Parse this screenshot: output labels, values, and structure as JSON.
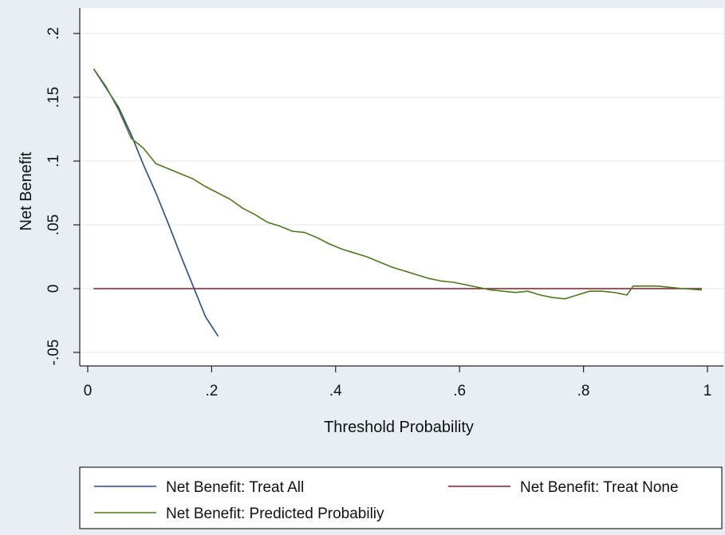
{
  "chart_data": {
    "type": "line",
    "xlabel": "Threshold Probability",
    "ylabel": "Net Benefit",
    "xlim": [
      0,
      1
    ],
    "ylim": [
      -0.06,
      0.2
    ],
    "x_ticks": [
      {
        "value": 0,
        "label": "0"
      },
      {
        "value": 0.2,
        "label": ".2"
      },
      {
        "value": 0.4,
        "label": ".4"
      },
      {
        "value": 0.6,
        "label": ".6"
      },
      {
        "value": 0.8,
        "label": ".8"
      },
      {
        "value": 1,
        "label": "1"
      }
    ],
    "y_ticks": [
      {
        "value": -0.05,
        "label": "-.05"
      },
      {
        "value": 0,
        "label": "0"
      },
      {
        "value": 0.05,
        "label": ".05"
      },
      {
        "value": 0.1,
        "label": ".1"
      },
      {
        "value": 0.15,
        "label": ".15"
      },
      {
        "value": 0.2,
        "label": ".2"
      }
    ],
    "grid": "horizontal",
    "legend_position": "bottom",
    "series": [
      {
        "name": "Net Benefit: Treat All",
        "color": "#2a4a8c",
        "x": [
          0.01,
          0.03,
          0.05,
          0.07,
          0.09,
          0.11,
          0.13,
          0.15,
          0.17,
          0.19,
          0.21
        ],
        "y": [
          0.172,
          0.157,
          0.142,
          0.121,
          0.097,
          0.075,
          0.051,
          0.026,
          0.002,
          -0.022,
          -0.037
        ]
      },
      {
        "name": "Net Benefit: Treat None",
        "color": "#8b1a2b",
        "x": [
          0.01,
          0.99
        ],
        "y": [
          0,
          0
        ]
      },
      {
        "name": "Net Benefit: Predicted Probabiliy",
        "color": "#4e7a1e",
        "x": [
          0.01,
          0.03,
          0.05,
          0.07,
          0.09,
          0.11,
          0.13,
          0.15,
          0.17,
          0.19,
          0.21,
          0.23,
          0.25,
          0.27,
          0.29,
          0.31,
          0.33,
          0.35,
          0.37,
          0.39,
          0.41,
          0.43,
          0.45,
          0.47,
          0.49,
          0.51,
          0.53,
          0.55,
          0.57,
          0.59,
          0.61,
          0.63,
          0.65,
          0.67,
          0.69,
          0.71,
          0.73,
          0.75,
          0.77,
          0.79,
          0.81,
          0.83,
          0.85,
          0.87,
          0.88,
          0.9,
          0.92,
          0.94,
          0.96,
          0.99
        ],
        "y": [
          0.172,
          0.158,
          0.14,
          0.118,
          0.11,
          0.098,
          0.094,
          0.09,
          0.086,
          0.08,
          0.075,
          0.07,
          0.063,
          0.058,
          0.052,
          0.049,
          0.045,
          0.044,
          0.04,
          0.035,
          0.031,
          0.028,
          0.025,
          0.021,
          0.017,
          0.014,
          0.011,
          0.008,
          0.006,
          0.005,
          0.003,
          0.001,
          -0.001,
          -0.002,
          -0.003,
          -0.002,
          -0.005,
          -0.007,
          -0.008,
          -0.005,
          -0.002,
          -0.002,
          -0.003,
          -0.005,
          0.002,
          0.002,
          0.002,
          0.001,
          0.0,
          -0.001
        ]
      }
    ]
  }
}
